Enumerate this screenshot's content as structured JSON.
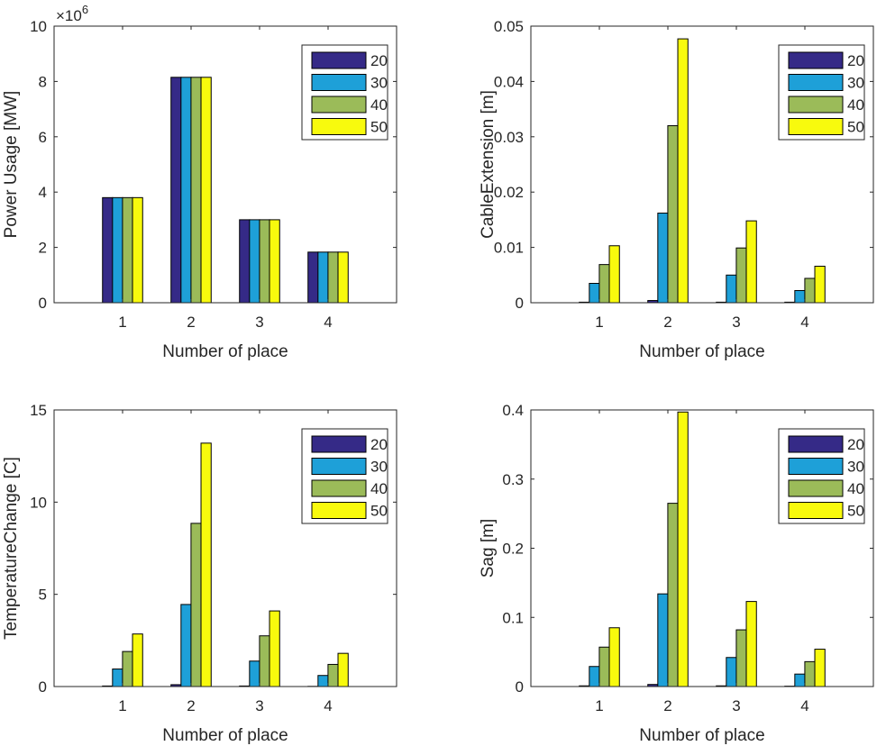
{
  "chart_data": [
    {
      "type": "bar",
      "categories": [
        "1",
        "2",
        "3",
        "4"
      ],
      "series": [
        {
          "name": "20",
          "values": [
            3800000,
            8150000,
            3000000,
            1830000
          ]
        },
        {
          "name": "30",
          "values": [
            3800000,
            8150000,
            3000000,
            1830000
          ]
        },
        {
          "name": "40",
          "values": [
            3800000,
            8150000,
            3000000,
            1830000
          ]
        },
        {
          "name": "50",
          "values": [
            3800000,
            8150000,
            3000000,
            1830000
          ]
        }
      ],
      "xlabel": "Number of place",
      "ylabel": "Power Usage [MW]",
      "ylim": [
        0,
        10000000
      ],
      "yticks": [
        0,
        2000000,
        4000000,
        6000000,
        8000000,
        10000000
      ],
      "ytick_labels": [
        "0",
        "2",
        "4",
        "6",
        "8",
        "10"
      ],
      "exponent_label": "×10",
      "exponent_power": "6",
      "legend_position": "top-right",
      "grid": false
    },
    {
      "type": "bar",
      "categories": [
        "1",
        "2",
        "3",
        "4"
      ],
      "series": [
        {
          "name": "20",
          "values": [
            0.0001,
            0.0004,
            0.0001,
            0.0001
          ]
        },
        {
          "name": "30",
          "values": [
            0.0035,
            0.0162,
            0.005,
            0.0022
          ]
        },
        {
          "name": "40",
          "values": [
            0.0069,
            0.032,
            0.0099,
            0.0044
          ]
        },
        {
          "name": "50",
          "values": [
            0.0103,
            0.0477,
            0.0148,
            0.0066
          ]
        }
      ],
      "xlabel": "Number of place",
      "ylabel": "CableExtension [m]",
      "ylim": [
        0,
        0.05
      ],
      "yticks": [
        0,
        0.01,
        0.02,
        0.03,
        0.04,
        0.05
      ],
      "ytick_labels": [
        "0",
        "0.01",
        "0.02",
        "0.03",
        "0.04",
        "0.05"
      ],
      "legend_position": "top-right",
      "grid": false
    },
    {
      "type": "bar",
      "categories": [
        "1",
        "2",
        "3",
        "4"
      ],
      "series": [
        {
          "name": "20",
          "values": [
            0.03,
            0.1,
            0.03,
            0.01
          ]
        },
        {
          "name": "30",
          "values": [
            0.95,
            4.45,
            1.38,
            0.6
          ]
        },
        {
          "name": "40",
          "values": [
            1.9,
            8.85,
            2.75,
            1.2
          ]
        },
        {
          "name": "50",
          "values": [
            2.85,
            13.2,
            4.1,
            1.8
          ]
        }
      ],
      "xlabel": "Number of place",
      "ylabel": "TemperatureChange [C]",
      "ylim": [
        0,
        15
      ],
      "yticks": [
        0,
        5,
        10,
        15
      ],
      "ytick_labels": [
        "0",
        "5",
        "10",
        "15"
      ],
      "legend_position": "top-right",
      "grid": false
    },
    {
      "type": "bar",
      "categories": [
        "1",
        "2",
        "3",
        "4"
      ],
      "series": [
        {
          "name": "20",
          "values": [
            0.001,
            0.003,
            0.001,
            0.0005
          ]
        },
        {
          "name": "30",
          "values": [
            0.029,
            0.134,
            0.042,
            0.018
          ]
        },
        {
          "name": "40",
          "values": [
            0.057,
            0.265,
            0.082,
            0.036
          ]
        },
        {
          "name": "50",
          "values": [
            0.085,
            0.397,
            0.123,
            0.054
          ]
        }
      ],
      "xlabel": "Number of place",
      "ylabel": "Sag [m]",
      "ylim": [
        0,
        0.4
      ],
      "yticks": [
        0,
        0.1,
        0.2,
        0.3,
        0.4
      ],
      "ytick_labels": [
        "0",
        "0.1",
        "0.2",
        "0.3",
        "0.4"
      ],
      "legend_position": "top-right",
      "grid": false
    }
  ],
  "colors": {
    "series": [
      "#352A87",
      "#1EA0D8",
      "#9BBB59",
      "#F8FA0D"
    ],
    "axis": "#262626",
    "bar_edge": "#000000"
  }
}
